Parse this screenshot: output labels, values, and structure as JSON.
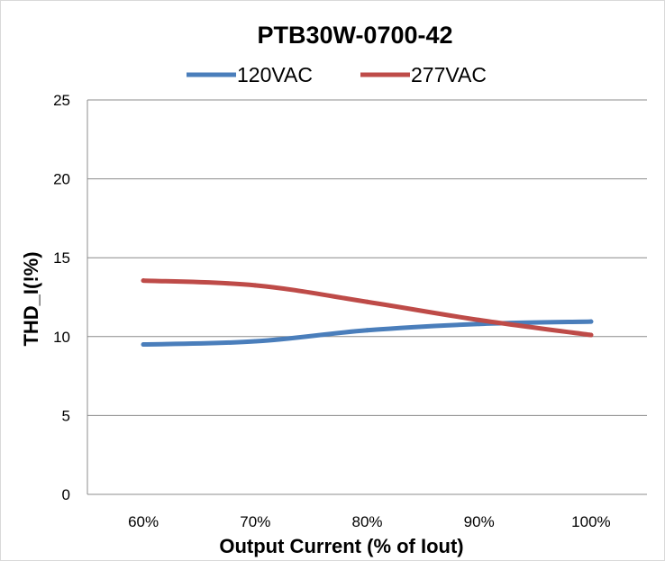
{
  "chart_data": {
    "type": "line",
    "title": "PTB30W-0700-42",
    "xlabel": "Output Current (% of Iout)",
    "ylabel": "THD_I(!%)",
    "categories": [
      "60%",
      "70%",
      "80%",
      "90%",
      "100%"
    ],
    "ylim": [
      0,
      25
    ],
    "yticks": [
      0,
      5,
      10,
      15,
      20,
      25
    ],
    "grid": true,
    "legend_position": "top",
    "series": [
      {
        "name": "120VAC",
        "color": "#4a7ebb",
        "values": [
          9.5,
          9.7,
          10.4,
          10.8,
          10.95
        ]
      },
      {
        "name": "277VAC",
        "color": "#be4b48",
        "values": [
          13.55,
          13.25,
          12.2,
          11.05,
          10.1
        ]
      }
    ]
  }
}
